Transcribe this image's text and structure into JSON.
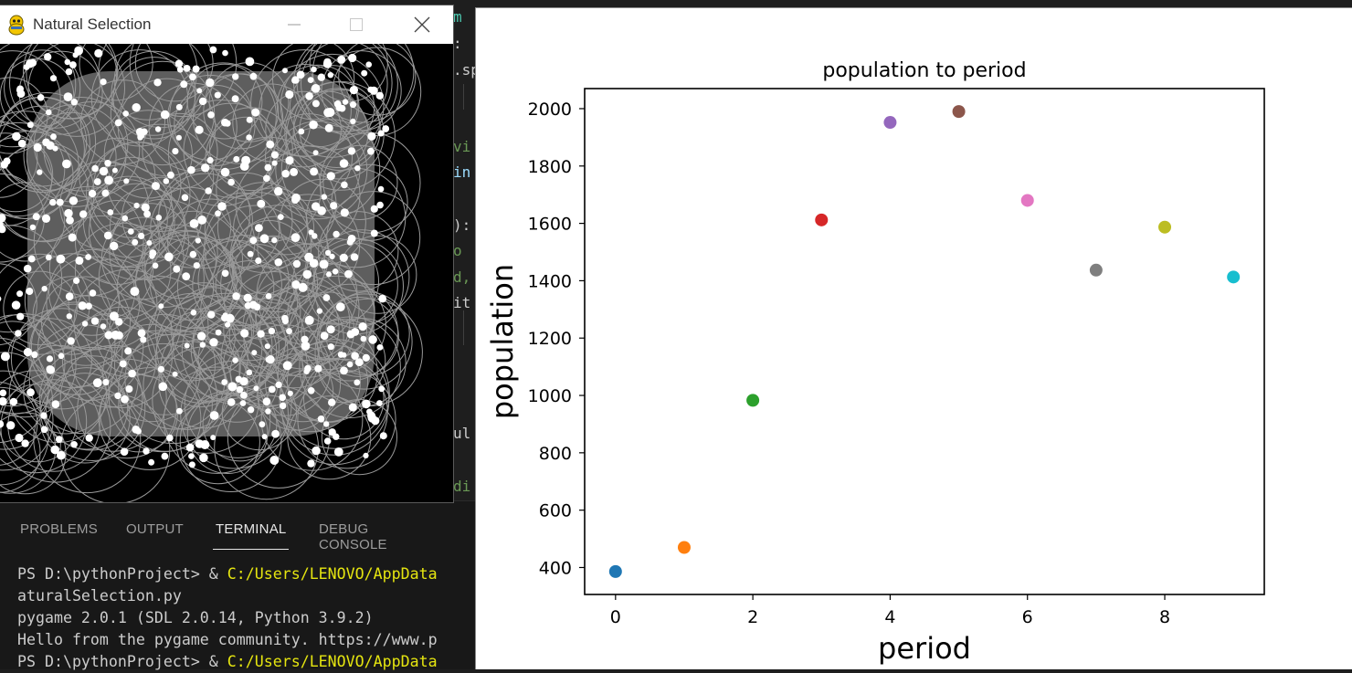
{
  "editor": {
    "fragments": [
      {
        "text": "m",
        "color": "#4ec9b0"
      },
      {
        "text": ":",
        "color": "#cccccc"
      },
      {
        "text": ".sp",
        "color": "#cccccc"
      },
      {
        "text": "vi",
        "color": "#6a9955"
      },
      {
        "text": "in",
        "color": "#9cdcfe"
      },
      {
        "text": "):",
        "color": "#cccccc"
      },
      {
        "text": "o",
        "color": "#6a9955"
      },
      {
        "text": "d,",
        "color": "#6a9955"
      },
      {
        "text": "it",
        "color": "#cccccc"
      },
      {
        "text": "ul",
        "color": "#cccccc"
      },
      {
        "text": "di",
        "color": "#6a9955"
      }
    ]
  },
  "panel": {
    "tabs": [
      "PROBLEMS",
      "OUTPUT",
      "TERMINAL",
      "DEBUG CONSOLE"
    ],
    "active_tab": "TERMINAL",
    "terminal": {
      "lines": [
        {
          "prompt": "PS D:\\pythonProject> & ",
          "path": "C:/Users/LENOVO/AppData"
        },
        {
          "prompt": "aturalSelection.py",
          "path": ""
        },
        {
          "prompt": "pygame 2.0.1 (SDL 2.0.14, Python 3.9.2)",
          "path": ""
        },
        {
          "prompt": "Hello from the pygame community. https://www.p",
          "path": ""
        },
        {
          "prompt": "PS D:\\pythonProject> & ",
          "path": "C:/Users/LENOVO/AppData"
        }
      ]
    }
  },
  "pygame_window": {
    "title": "Natural Selection",
    "icon": "pygame-snake-icon",
    "controls": [
      "minimize-icon",
      "maximize-icon",
      "close-icon"
    ]
  },
  "plot_window": {
    "chart_data": {
      "type": "scatter",
      "title": "population to period",
      "xlabel": "period",
      "ylabel": "population",
      "x": [
        0,
        1,
        2,
        3,
        4,
        5,
        6,
        7,
        8,
        9
      ],
      "y": [
        386,
        470,
        983,
        1612,
        1952,
        1990,
        1680,
        1437,
        1587,
        1413
      ],
      "colors": [
        "#1f77b4",
        "#ff7f0e",
        "#2ca02c",
        "#d62728",
        "#9467bd",
        "#8c564b",
        "#e377c2",
        "#7f7f7f",
        "#bcbd22",
        "#17becf"
      ],
      "xticks": [
        0,
        2,
        4,
        6,
        8
      ],
      "yticks": [
        400,
        600,
        800,
        1000,
        1200,
        1400,
        1600,
        1800,
        2000
      ],
      "xlim": [
        -0.45,
        9.45
      ],
      "ylim": [
        306,
        2070
      ],
      "grid": false,
      "legend": "none"
    }
  }
}
